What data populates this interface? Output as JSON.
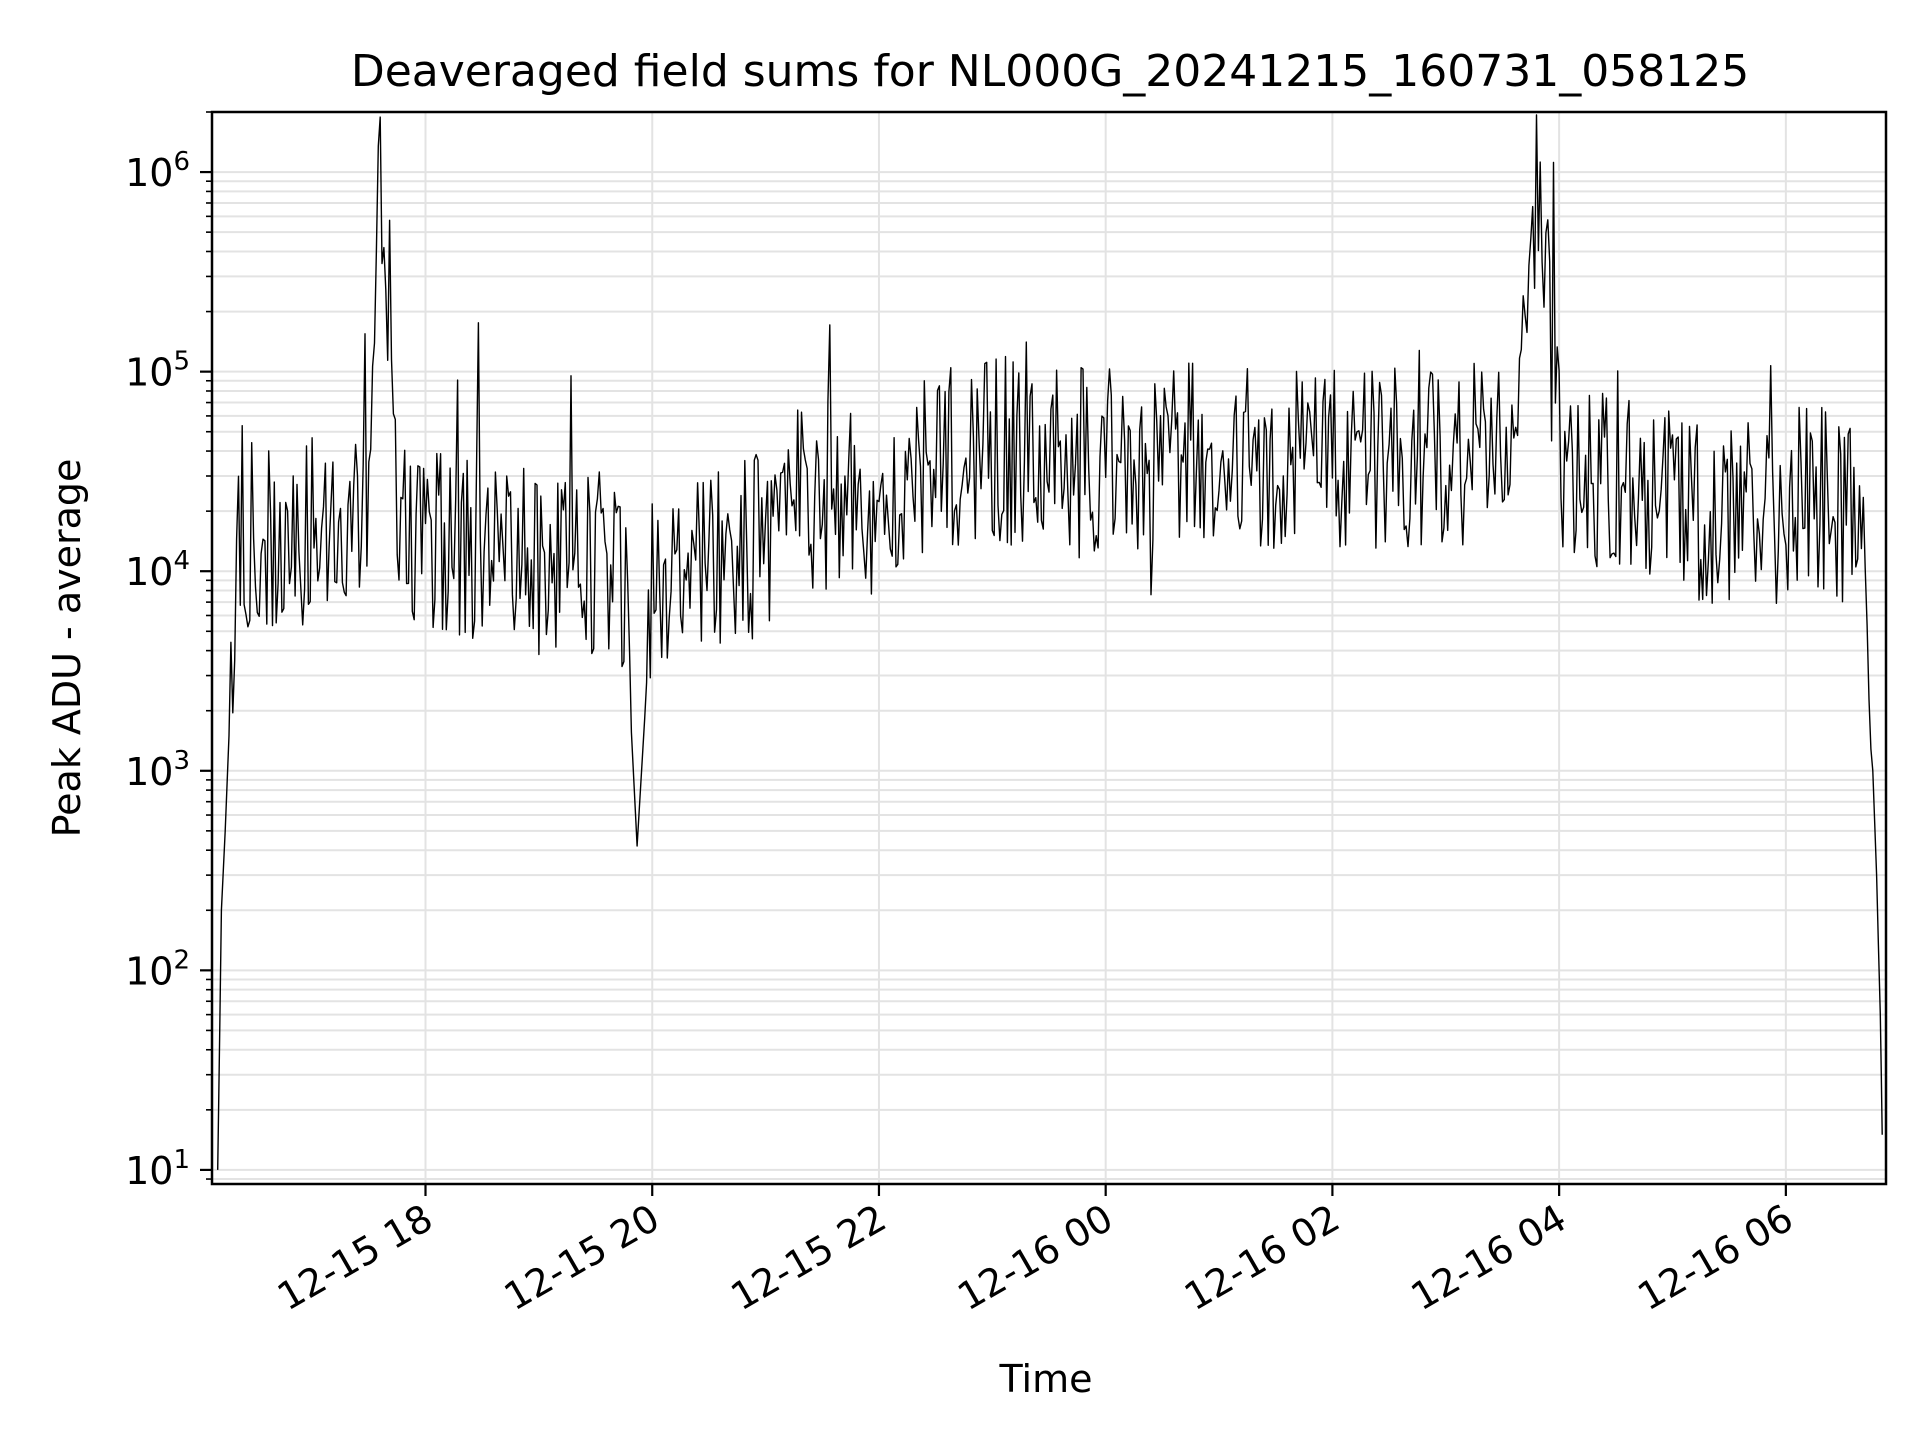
{
  "chart_data": {
    "type": "line",
    "title": "Deaveraged field sums for NL000G_20241215_160731_058125",
    "xlabel": "Time",
    "ylabel": "Peak ADU - average",
    "yscale": "log",
    "ylim": [
      8.5,
      2000000
    ],
    "xlim": [
      "2024-12-15 16:07",
      "2024-12-16 06:53"
    ],
    "grid": true,
    "legend": "none",
    "line_color": "#000000",
    "x_ticks": [
      {
        "label": "12-15 18",
        "time": "2024-12-15 18:00"
      },
      {
        "label": "12-15 20",
        "time": "2024-12-15 20:00"
      },
      {
        "label": "12-15 22",
        "time": "2024-12-15 22:00"
      },
      {
        "label": "12-16 00",
        "time": "2024-12-16 00:00"
      },
      {
        "label": "12-16 02",
        "time": "2024-12-16 02:00"
      },
      {
        "label": "12-16 04",
        "time": "2024-12-16 04:00"
      },
      {
        "label": "12-16 06",
        "time": "2024-12-16 06:00"
      }
    ],
    "y_ticks": [
      {
        "base": "10",
        "exp": "1",
        "value": 10
      },
      {
        "base": "10",
        "exp": "2",
        "value": 100
      },
      {
        "base": "10",
        "exp": "3",
        "value": 1000
      },
      {
        "base": "10",
        "exp": "4",
        "value": 10000
      },
      {
        "base": "10",
        "exp": "5",
        "value": 100000
      },
      {
        "base": "10",
        "exp": "6",
        "value": 1000000
      }
    ],
    "series": [
      {
        "x": [
          "2024-12-15 16:10",
          "2024-12-15 16:12",
          "2024-12-15 16:14",
          "2024-12-15 16:16",
          "2024-12-15 16:18",
          "2024-12-15 16:20",
          "2024-12-15 16:25",
          "2024-12-15 16:30",
          "2024-12-15 16:40",
          "2024-12-15 16:50",
          "2024-12-15 17:00",
          "2024-12-15 17:10",
          "2024-12-15 17:20",
          "2024-12-15 17:30",
          "2024-12-15 17:35",
          "2024-12-15 17:45",
          "2024-12-15 18:00",
          "2024-12-15 18:15",
          "2024-12-15 18:30",
          "2024-12-15 18:45",
          "2024-12-15 19:00",
          "2024-12-15 19:10",
          "2024-12-15 19:30",
          "2024-12-15 19:45",
          "2024-12-15 19:52",
          "2024-12-15 20:00",
          "2024-12-15 20:15",
          "2024-12-15 20:20",
          "2024-12-15 20:30",
          "2024-12-15 20:45",
          "2024-12-15 21:00",
          "2024-12-15 21:10",
          "2024-12-15 21:30",
          "2024-12-15 21:45",
          "2024-12-15 22:00",
          "2024-12-15 22:15",
          "2024-12-15 22:30",
          "2024-12-15 22:45",
          "2024-12-15 23:00",
          "2024-12-15 23:30",
          "2024-12-16 00:00",
          "2024-12-16 00:30",
          "2024-12-16 01:00",
          "2024-12-16 01:30",
          "2024-12-16 02:00",
          "2024-12-16 02:30",
          "2024-12-16 03:00",
          "2024-12-16 03:30",
          "2024-12-16 03:50",
          "2024-12-16 04:00",
          "2024-12-16 04:30",
          "2024-12-16 05:00",
          "2024-12-16 05:30",
          "2024-12-16 06:00",
          "2024-12-16 06:15",
          "2024-12-16 06:30",
          "2024-12-16 06:40",
          "2024-12-16 06:44",
          "2024-12-16 06:46",
          "2024-12-16 06:48",
          "2024-12-16 06:50",
          "2024-12-16 06:51"
        ],
        "y": [
          10,
          200,
          500,
          1500,
          4000,
          12000,
          15000,
          16000,
          15000,
          15000,
          16000,
          14000,
          15000,
          20000,
          1100000,
          16000,
          15000,
          14000,
          13000,
          12000,
          13000,
          12000,
          11000,
          9000,
          420,
          8000,
          9000,
          10000,
          11000,
          12000,
          14000,
          25000,
          20000,
          22000,
          22000,
          25000,
          35000,
          38000,
          40000,
          40000,
          35000,
          38000,
          40000,
          38000,
          35000,
          40000,
          38000,
          40000,
          700000,
          35000,
          28000,
          22000,
          18000,
          20000,
          25000,
          20000,
          18000,
          5000,
          1000,
          300,
          60,
          15
        ]
      }
    ]
  }
}
